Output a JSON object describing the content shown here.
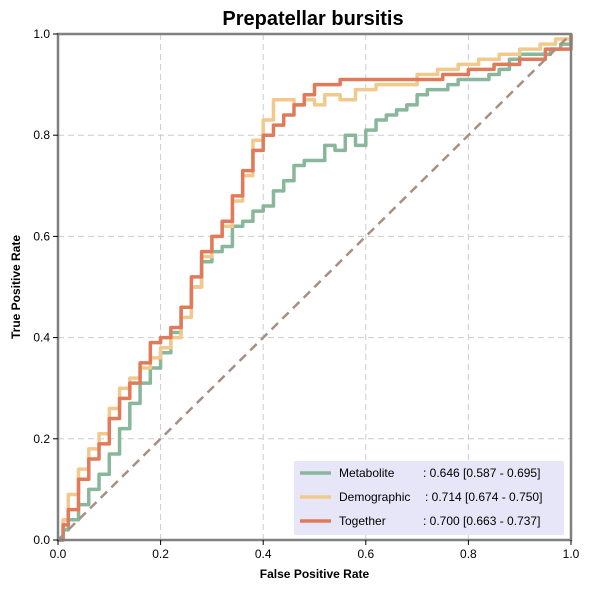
{
  "chart_data": {
    "type": "line",
    "title": "Prepatellar bursitis",
    "xlabel": "False Positive Rate",
    "ylabel": "True Positive Rate",
    "xlim": [
      0,
      1
    ],
    "ylim": [
      0,
      1
    ],
    "xticks": [
      "0.0",
      "0.2",
      "0.4",
      "0.6",
      "0.8",
      "1.0"
    ],
    "yticks": [
      "0.0",
      "0.2",
      "0.4",
      "0.6",
      "0.8",
      "1.0"
    ],
    "grid": true,
    "legend_position": "bottom-right",
    "colors": {
      "Metabolite": "#88b79b",
      "Demographic": "#f2c98c",
      "Together": "#e07a5a",
      "chance": "#a88f82",
      "legend_bg": "#e6e6f8",
      "frame": "#808080"
    },
    "series": [
      {
        "name": "Metabolite",
        "legend_label": "Metabolite",
        "legend_value": ": 0.646 [0.587 - 0.695]",
        "x": [
          0.0,
          0.01,
          0.02,
          0.04,
          0.06,
          0.08,
          0.1,
          0.12,
          0.14,
          0.16,
          0.18,
          0.2,
          0.22,
          0.24,
          0.26,
          0.28,
          0.3,
          0.32,
          0.34,
          0.36,
          0.38,
          0.4,
          0.42,
          0.44,
          0.46,
          0.48,
          0.5,
          0.52,
          0.54,
          0.56,
          0.58,
          0.6,
          0.62,
          0.64,
          0.66,
          0.68,
          0.7,
          0.72,
          0.74,
          0.76,
          0.78,
          0.8,
          0.82,
          0.84,
          0.86,
          0.88,
          0.9,
          0.92,
          0.94,
          0.96,
          0.98,
          1.0
        ],
        "y": [
          0.0,
          0.02,
          0.04,
          0.07,
          0.1,
          0.13,
          0.17,
          0.22,
          0.27,
          0.31,
          0.34,
          0.37,
          0.41,
          0.46,
          0.5,
          0.55,
          0.57,
          0.58,
          0.62,
          0.63,
          0.65,
          0.66,
          0.69,
          0.71,
          0.74,
          0.75,
          0.75,
          0.78,
          0.77,
          0.8,
          0.78,
          0.81,
          0.83,
          0.84,
          0.85,
          0.86,
          0.88,
          0.89,
          0.89,
          0.9,
          0.91,
          0.91,
          0.91,
          0.92,
          0.93,
          0.95,
          0.96,
          0.96,
          0.96,
          0.97,
          0.98,
          1.0
        ]
      },
      {
        "name": "Demographic",
        "legend_label": "Demographic",
        "legend_value": ": 0.714 [0.674 - 0.750]",
        "x": [
          0.0,
          0.01,
          0.02,
          0.04,
          0.06,
          0.08,
          0.1,
          0.12,
          0.14,
          0.16,
          0.18,
          0.2,
          0.22,
          0.24,
          0.26,
          0.28,
          0.3,
          0.32,
          0.34,
          0.36,
          0.38,
          0.4,
          0.42,
          0.44,
          0.46,
          0.48,
          0.5,
          0.52,
          0.55,
          0.58,
          0.62,
          0.66,
          0.7,
          0.74,
          0.78,
          0.82,
          0.86,
          0.9,
          0.94,
          0.97,
          1.0
        ],
        "y": [
          0.0,
          0.04,
          0.09,
          0.14,
          0.18,
          0.21,
          0.26,
          0.3,
          0.32,
          0.34,
          0.36,
          0.38,
          0.4,
          0.44,
          0.5,
          0.56,
          0.6,
          0.62,
          0.67,
          0.72,
          0.79,
          0.83,
          0.87,
          0.87,
          0.86,
          0.87,
          0.86,
          0.88,
          0.87,
          0.89,
          0.9,
          0.9,
          0.92,
          0.93,
          0.94,
          0.95,
          0.96,
          0.97,
          0.98,
          0.99,
          1.0
        ]
      },
      {
        "name": "Together",
        "legend_label": "Together",
        "legend_value": ": 0.700 [0.663 - 0.737]",
        "x": [
          0.0,
          0.01,
          0.02,
          0.04,
          0.06,
          0.08,
          0.1,
          0.12,
          0.14,
          0.16,
          0.18,
          0.2,
          0.22,
          0.24,
          0.26,
          0.28,
          0.3,
          0.32,
          0.34,
          0.36,
          0.38,
          0.4,
          0.42,
          0.44,
          0.46,
          0.48,
          0.5,
          0.52,
          0.55,
          0.6,
          0.66,
          0.7,
          0.75,
          0.8,
          0.85,
          0.9,
          0.95,
          1.0
        ],
        "y": [
          0.0,
          0.03,
          0.06,
          0.12,
          0.16,
          0.19,
          0.24,
          0.28,
          0.31,
          0.35,
          0.39,
          0.4,
          0.42,
          0.46,
          0.52,
          0.57,
          0.6,
          0.63,
          0.68,
          0.73,
          0.77,
          0.8,
          0.82,
          0.84,
          0.86,
          0.88,
          0.9,
          0.9,
          0.91,
          0.91,
          0.91,
          0.91,
          0.92,
          0.93,
          0.94,
          0.95,
          0.97,
          1.0
        ]
      },
      {
        "name": "chance",
        "x": [
          0,
          1
        ],
        "y": [
          0,
          1
        ]
      }
    ]
  }
}
